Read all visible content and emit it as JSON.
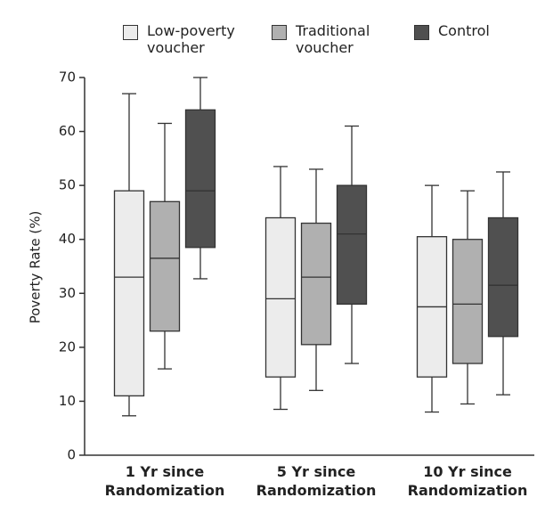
{
  "chart_data": {
    "type": "box",
    "y_label": "Poverty Rate (%)",
    "categories": [
      "1 Yr since Randomization",
      "5 Yr since Randomization",
      "10 Yr since Randomization"
    ],
    "series": [
      {
        "name": "Low-poverty voucher",
        "color": "#ececec",
        "values": [
          {
            "min": 7.3,
            "q1": 11,
            "median": 33,
            "q3": 49,
            "max": 67
          },
          {
            "min": 8.5,
            "q1": 14.5,
            "median": 29,
            "q3": 44,
            "max": 53.5
          },
          {
            "min": 8,
            "q1": 14.5,
            "median": 27.5,
            "q3": 40.5,
            "max": 50
          }
        ]
      },
      {
        "name": "Traditional voucher",
        "color": "#b0b0b0",
        "values": [
          {
            "min": 16,
            "q1": 23,
            "median": 36.5,
            "q3": 47,
            "max": 61.5
          },
          {
            "min": 12,
            "q1": 20.5,
            "median": 33,
            "q3": 43,
            "max": 53
          },
          {
            "min": 9.5,
            "q1": 17,
            "median": 28,
            "q3": 40,
            "max": 49
          }
        ]
      },
      {
        "name": "Control",
        "color": "#505050",
        "values": [
          {
            "min": 32.7,
            "q1": 38.5,
            "median": 49,
            "q3": 64,
            "max": 70
          },
          {
            "min": 17,
            "q1": 28,
            "median": 41,
            "q3": 50,
            "max": 61
          },
          {
            "min": 11.2,
            "q1": 22,
            "median": 31.5,
            "q3": 44,
            "max": 52.5
          }
        ]
      }
    ],
    "ylim": [
      0,
      70
    ],
    "yticks": [
      0,
      10,
      20,
      30,
      40,
      50,
      60,
      70
    ],
    "legend": "top"
  }
}
